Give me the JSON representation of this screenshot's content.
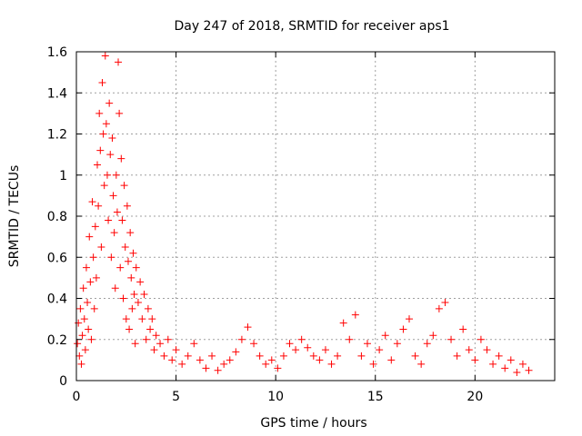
{
  "chart_data": {
    "type": "scatter",
    "title": "Day 247 of 2018, SRMTID for receiver aps1",
    "xlabel": "GPS time / hours",
    "ylabel": "SRMTID / TECUs",
    "xlim": [
      0,
      24
    ],
    "ylim": [
      0,
      1.6
    ],
    "xticks": [
      0,
      5,
      10,
      15,
      20
    ],
    "xtick_labels": [
      "0",
      "5",
      "10",
      "15",
      "20"
    ],
    "yticks": [
      0,
      0.2,
      0.4,
      0.6,
      0.8,
      1.0,
      1.2,
      1.4,
      1.6
    ],
    "ytick_labels": [
      "0",
      "0.2",
      "0.4",
      "0.6",
      "0.8",
      "1",
      "1.2",
      "1.4",
      "1.6"
    ],
    "grid": true,
    "marker": "plus",
    "colors": {
      "points": "#ff0000",
      "grid": "#a0a0a0",
      "axes": "#000000"
    },
    "series": [
      {
        "name": "SRMTID",
        "points": [
          [
            0.05,
            0.18
          ],
          [
            0.1,
            0.28
          ],
          [
            0.15,
            0.12
          ],
          [
            0.2,
            0.35
          ],
          [
            0.25,
            0.08
          ],
          [
            0.3,
            0.22
          ],
          [
            0.35,
            0.45
          ],
          [
            0.4,
            0.3
          ],
          [
            0.45,
            0.15
          ],
          [
            0.5,
            0.55
          ],
          [
            0.55,
            0.38
          ],
          [
            0.6,
            0.25
          ],
          [
            0.65,
            0.7
          ],
          [
            0.7,
            0.48
          ],
          [
            0.75,
            0.2
          ],
          [
            0.8,
            0.87
          ],
          [
            0.85,
            0.6
          ],
          [
            0.9,
            0.35
          ],
          [
            0.95,
            0.75
          ],
          [
            1.0,
            0.5
          ],
          [
            1.05,
            1.05
          ],
          [
            1.1,
            0.85
          ],
          [
            1.15,
            1.3
          ],
          [
            1.2,
            1.12
          ],
          [
            1.25,
            0.65
          ],
          [
            1.3,
            1.45
          ],
          [
            1.35,
            1.2
          ],
          [
            1.4,
            0.95
          ],
          [
            1.45,
            1.58
          ],
          [
            1.5,
            1.25
          ],
          [
            1.55,
            1.0
          ],
          [
            1.6,
            0.78
          ],
          [
            1.65,
            1.35
          ],
          [
            1.7,
            1.1
          ],
          [
            1.75,
            0.6
          ],
          [
            1.8,
            1.18
          ],
          [
            1.85,
            0.9
          ],
          [
            1.9,
            0.72
          ],
          [
            1.95,
            0.45
          ],
          [
            2.0,
            1.0
          ],
          [
            2.05,
            0.82
          ],
          [
            2.1,
            1.55
          ],
          [
            2.15,
            1.3
          ],
          [
            2.2,
            0.55
          ],
          [
            2.25,
            1.08
          ],
          [
            2.3,
            0.78
          ],
          [
            2.35,
            0.4
          ],
          [
            2.4,
            0.95
          ],
          [
            2.45,
            0.65
          ],
          [
            2.5,
            0.3
          ],
          [
            2.55,
            0.85
          ],
          [
            2.6,
            0.58
          ],
          [
            2.65,
            0.25
          ],
          [
            2.7,
            0.72
          ],
          [
            2.75,
            0.5
          ],
          [
            2.8,
            0.35
          ],
          [
            2.85,
            0.62
          ],
          [
            2.9,
            0.42
          ],
          [
            2.95,
            0.18
          ],
          [
            3.0,
            0.55
          ],
          [
            3.1,
            0.38
          ],
          [
            3.2,
            0.48
          ],
          [
            3.3,
            0.3
          ],
          [
            3.4,
            0.42
          ],
          [
            3.5,
            0.2
          ],
          [
            3.6,
            0.35
          ],
          [
            3.7,
            0.25
          ],
          [
            3.8,
            0.3
          ],
          [
            3.9,
            0.15
          ],
          [
            4.0,
            0.22
          ],
          [
            4.2,
            0.18
          ],
          [
            4.4,
            0.12
          ],
          [
            4.6,
            0.2
          ],
          [
            4.8,
            0.1
          ],
          [
            5.0,
            0.15
          ],
          [
            5.3,
            0.08
          ],
          [
            5.6,
            0.12
          ],
          [
            5.9,
            0.18
          ],
          [
            6.2,
            0.1
          ],
          [
            6.5,
            0.06
          ],
          [
            6.8,
            0.12
          ],
          [
            7.1,
            0.05
          ],
          [
            7.4,
            0.08
          ],
          [
            7.7,
            0.1
          ],
          [
            8.0,
            0.14
          ],
          [
            8.3,
            0.2
          ],
          [
            8.6,
            0.26
          ],
          [
            8.9,
            0.18
          ],
          [
            9.2,
            0.12
          ],
          [
            9.5,
            0.08
          ],
          [
            9.8,
            0.1
          ],
          [
            10.1,
            0.06
          ],
          [
            10.4,
            0.12
          ],
          [
            10.7,
            0.18
          ],
          [
            11.0,
            0.15
          ],
          [
            11.3,
            0.2
          ],
          [
            11.6,
            0.16
          ],
          [
            11.9,
            0.12
          ],
          [
            12.2,
            0.1
          ],
          [
            12.5,
            0.15
          ],
          [
            12.8,
            0.08
          ],
          [
            13.1,
            0.12
          ],
          [
            13.4,
            0.28
          ],
          [
            13.7,
            0.2
          ],
          [
            14.0,
            0.32
          ],
          [
            14.3,
            0.12
          ],
          [
            14.6,
            0.18
          ],
          [
            14.9,
            0.08
          ],
          [
            15.2,
            0.15
          ],
          [
            15.5,
            0.22
          ],
          [
            15.8,
            0.1
          ],
          [
            16.1,
            0.18
          ],
          [
            16.4,
            0.25
          ],
          [
            16.7,
            0.3
          ],
          [
            17.0,
            0.12
          ],
          [
            17.3,
            0.08
          ],
          [
            17.6,
            0.18
          ],
          [
            17.9,
            0.22
          ],
          [
            18.2,
            0.35
          ],
          [
            18.5,
            0.38
          ],
          [
            18.8,
            0.2
          ],
          [
            19.1,
            0.12
          ],
          [
            19.4,
            0.25
          ],
          [
            19.7,
            0.15
          ],
          [
            20.0,
            0.1
          ],
          [
            20.3,
            0.2
          ],
          [
            20.6,
            0.15
          ],
          [
            20.9,
            0.08
          ],
          [
            21.2,
            0.12
          ],
          [
            21.5,
            0.06
          ],
          [
            21.8,
            0.1
          ],
          [
            22.1,
            0.04
          ],
          [
            22.4,
            0.08
          ],
          [
            22.7,
            0.05
          ]
        ]
      }
    ]
  }
}
